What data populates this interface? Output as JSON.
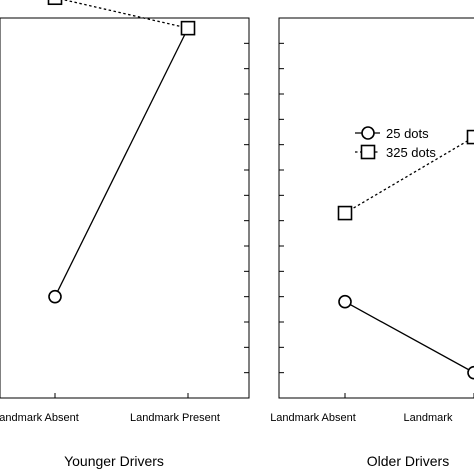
{
  "chart_data": {
    "type": "line",
    "categories": [
      "Landmark Absent",
      "Landmark Present"
    ],
    "ylim": [
      0,
      15
    ],
    "legend_position": "top-left (right panel)",
    "legend": [
      {
        "label": "25 dots",
        "marker": "circle",
        "line": "solid"
      },
      {
        "label": "325 dots",
        "marker": "square",
        "line": "dotted"
      }
    ],
    "panels": [
      {
        "title": "Younger Drivers",
        "tick_labels": [
          "Landmark Absent",
          "Landmark Present"
        ],
        "series": [
          {
            "name": "25 dots",
            "values": [
              4.0,
              14.6
            ]
          },
          {
            "name": "325 dots",
            "values": [
              15.8,
              14.6
            ]
          }
        ]
      },
      {
        "title": "Older Drivers",
        "tick_labels": [
          "Landmark Absent",
          "Landmark"
        ],
        "series": [
          {
            "name": "25 dots",
            "values": [
              3.8,
              1.0
            ]
          },
          {
            "name": "325 dots",
            "values": [
              7.3,
              10.3
            ]
          }
        ]
      }
    ]
  }
}
